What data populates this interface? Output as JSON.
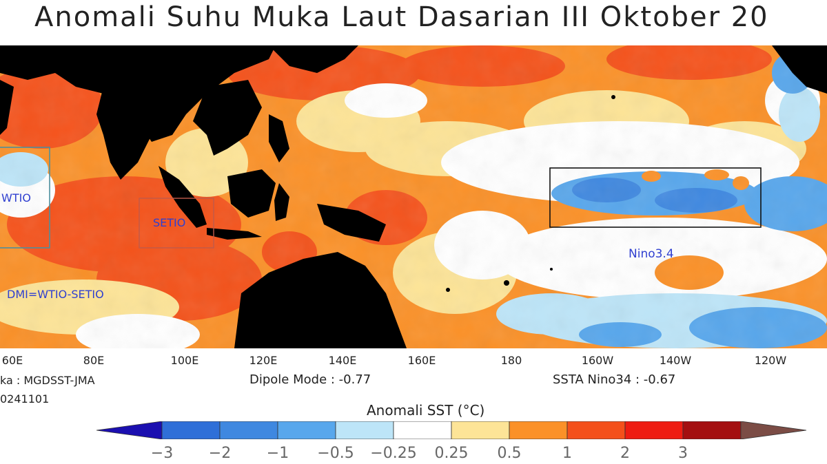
{
  "title": "Anomali Suhu Muka Laut Dasarian III Oktober 20",
  "source_text": "ka : MGDSST-JMA",
  "date_text": "0241101",
  "dipole_text": "Dipole Mode : -0.77",
  "nino_text": "SSTA Nino34 : -0.67",
  "colorbar_title": "Anomali SST (°C)",
  "longitude_labels": [
    "60E",
    "80E",
    "100E",
    "120E",
    "140E",
    "160E",
    "180",
    "160W",
    "140W",
    "120W"
  ],
  "regions": {
    "wtio": "WTIO",
    "setio": "SETIO",
    "nino34": "Nino3.4",
    "dmi": "DMI=WTIO-SETIO"
  },
  "legend": {
    "ticks": [
      "-3",
      "-2",
      "-1",
      "-0.5",
      "-0.25",
      "0.25",
      "0.5",
      "1",
      "2",
      "3"
    ],
    "colors": [
      "#1b0fb0",
      "#2f6fd8",
      "#3f88e0",
      "#58a7ec",
      "#bde5f8",
      "#ffffff",
      "#fde497",
      "#fb9128",
      "#f4501b",
      "#ee1c12",
      "#a40f10",
      "#7b4c45"
    ]
  },
  "colors": {
    "land": "#000000",
    "warm_strong": "#f4501b",
    "warm": "#fb9128",
    "warm_light": "#fde497",
    "neutral": "#ffffff",
    "cool_light": "#bde5f8",
    "cool": "#58a7ec"
  }
}
